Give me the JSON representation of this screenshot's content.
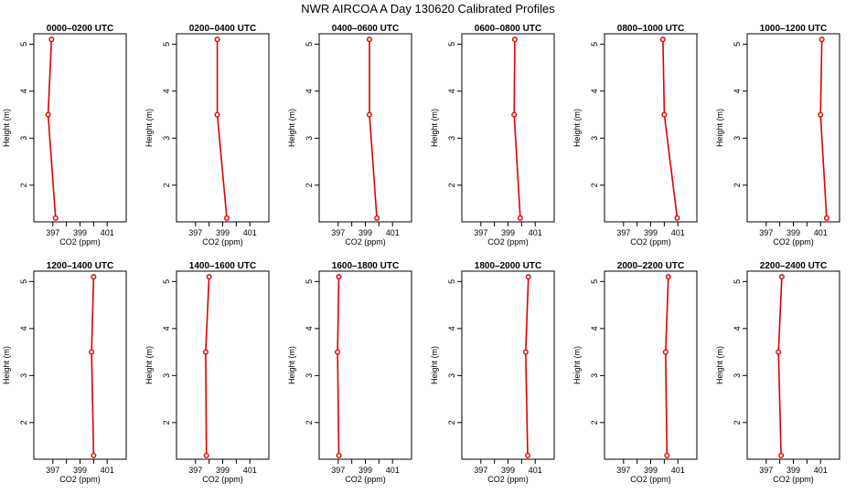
{
  "title": "NWR AIRCOA A  Day 130620  Calibrated Profiles",
  "colors": {
    "line": "#dd0000",
    "axis": "#000000",
    "background": "#ffffff"
  },
  "axes": {
    "xlabel": "CO2 (ppm)",
    "ylabel": "Height (m)",
    "xlim": [
      395.6,
      402.4
    ],
    "ylim": [
      1.22,
      5.22
    ],
    "xticks": [
      397,
      398,
      399,
      400,
      401
    ],
    "xtick_labels": [
      "397",
      "",
      "399",
      "",
      "401"
    ],
    "yticks": [
      2,
      3,
      4,
      5
    ],
    "ytick_labels": [
      "2",
      "3",
      "4",
      "5"
    ]
  },
  "chart_data": [
    {
      "type": "line",
      "title": "0000–0200 UTC",
      "heights": [
        5.1,
        3.5,
        1.3
      ],
      "co2": [
        396.9,
        396.65,
        397.2
      ]
    },
    {
      "type": "line",
      "title": "0200–0400 UTC",
      "heights": [
        5.1,
        3.5,
        1.3
      ],
      "co2": [
        398.6,
        398.6,
        399.3
      ]
    },
    {
      "type": "line",
      "title": "0400–0600 UTC",
      "heights": [
        5.1,
        3.5,
        1.3
      ],
      "co2": [
        399.3,
        399.3,
        399.85
      ]
    },
    {
      "type": "line",
      "title": "0600–0800 UTC",
      "heights": [
        5.1,
        3.5,
        1.3
      ],
      "co2": [
        399.5,
        399.45,
        399.9
      ]
    },
    {
      "type": "line",
      "title": "0800–1000 UTC",
      "heights": [
        5.1,
        3.5,
        1.3
      ],
      "co2": [
        399.9,
        400.0,
        400.95
      ]
    },
    {
      "type": "line",
      "title": "1000–1200 UTC",
      "heights": [
        5.1,
        3.5,
        1.3
      ],
      "co2": [
        401.1,
        401.0,
        401.45
      ]
    },
    {
      "type": "line",
      "title": "1200–1400 UTC",
      "heights": [
        5.1,
        3.5,
        1.3
      ],
      "co2": [
        400.0,
        399.85,
        400.0
      ]
    },
    {
      "type": "line",
      "title": "1400–1600 UTC",
      "heights": [
        5.1,
        3.5,
        1.3
      ],
      "co2": [
        398.0,
        397.75,
        397.8
      ]
    },
    {
      "type": "line",
      "title": "1600–1800 UTC",
      "heights": [
        5.1,
        3.5,
        1.3
      ],
      "co2": [
        397.05,
        396.95,
        397.05
      ]
    },
    {
      "type": "line",
      "title": "1800–2000 UTC",
      "heights": [
        5.1,
        3.5,
        1.3
      ],
      "co2": [
        400.5,
        400.3,
        400.45
      ]
    },
    {
      "type": "line",
      "title": "2000–2200 UTC",
      "heights": [
        5.1,
        3.5,
        1.3
      ],
      "co2": [
        400.3,
        400.1,
        400.2
      ]
    },
    {
      "type": "line",
      "title": "2200–2400 UTC",
      "heights": [
        5.1,
        3.5,
        1.3
      ],
      "co2": [
        398.15,
        397.9,
        398.1
      ]
    }
  ]
}
